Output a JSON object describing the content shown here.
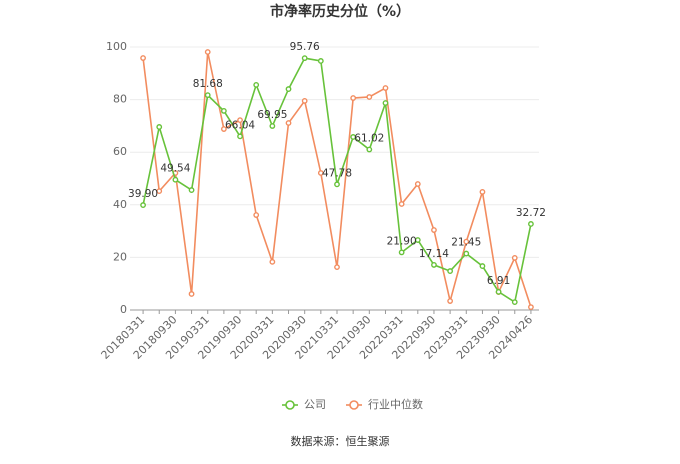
{
  "chart_data": {
    "type": "line",
    "title": "市净率历史分位（%）",
    "source": "数据来源：恒生聚源",
    "categories": [
      "20180331",
      null,
      "20180930",
      null,
      "20190331",
      null,
      "20190930",
      null,
      "20200331",
      null,
      "20200930",
      null,
      "20210331",
      null,
      "20210930",
      null,
      "20220331",
      null,
      "20220930",
      null,
      "20230331",
      null,
      "20230930",
      null,
      "20240426"
    ],
    "series": [
      {
        "name": "公司",
        "color": "#67c23a",
        "values": [
          39.9,
          69.6,
          49.54,
          45.6,
          81.68,
          75.7,
          66.04,
          85.6,
          69.95,
          84.0,
          95.76,
          94.7,
          47.78,
          65.8,
          61.02,
          78.7,
          21.9,
          26.6,
          17.14,
          14.8,
          21.45,
          16.7,
          6.91,
          3.0,
          32.72
        ],
        "value_labels": [
          "39.90",
          null,
          "49.54",
          null,
          "81.68",
          null,
          "66.04",
          null,
          "69.95",
          null,
          "95.76",
          null,
          "47.78",
          null,
          "61.02",
          null,
          "21.90",
          null,
          "17.14",
          null,
          "21.45",
          null,
          "6.91",
          null,
          "32.72"
        ]
      },
      {
        "name": "行业中位数",
        "color": "#f28c5f",
        "values": [
          95.8,
          45.2,
          52.1,
          6.1,
          98.1,
          68.8,
          72.2,
          36.1,
          18.3,
          71.1,
          79.5,
          52.1,
          16.3,
          80.6,
          81.0,
          84.4,
          40.3,
          47.9,
          30.4,
          3.4,
          26.0,
          44.9,
          6.8,
          19.8,
          1.1
        ]
      }
    ],
    "ylim": [
      0,
      100
    ],
    "yticks": [
      0,
      20,
      40,
      60,
      80,
      100
    ],
    "grid": true,
    "legend": "bottom"
  }
}
